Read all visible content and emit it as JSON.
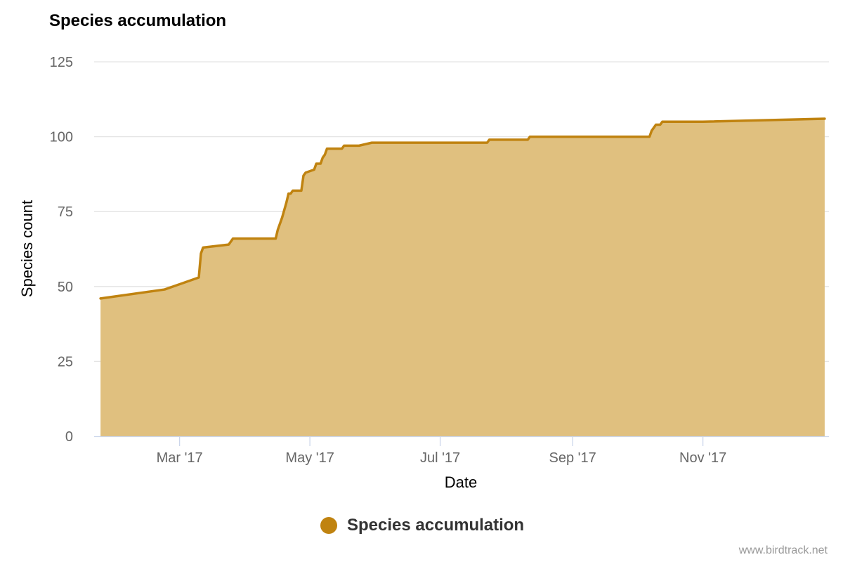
{
  "chart_data": {
    "type": "area",
    "title": "Species accumulation",
    "xlabel": "Date",
    "ylabel": "Species count",
    "x_type": "date",
    "xlim": [
      "2017-01-20",
      "2017-12-30"
    ],
    "ylim": [
      0,
      125
    ],
    "y_ticks": [
      0,
      25,
      50,
      75,
      100,
      125
    ],
    "x_ticks": [
      {
        "date": "2017-03-01",
        "label": "Mar '17"
      },
      {
        "date": "2017-05-01",
        "label": "May '17"
      },
      {
        "date": "2017-07-01",
        "label": "Jul '17"
      },
      {
        "date": "2017-09-01",
        "label": "Sep '17"
      },
      {
        "date": "2017-11-01",
        "label": "Nov '17"
      }
    ],
    "grid": true,
    "legend_position": "bottom-center",
    "series": [
      {
        "name": "Species accumulation",
        "color": "#c08310",
        "fill_color": "#e0c07f",
        "x": [
          "2017-01-23",
          "2017-02-22",
          "2017-03-10",
          "2017-03-11",
          "2017-03-12",
          "2017-03-24",
          "2017-03-26",
          "2017-04-15",
          "2017-04-16",
          "2017-04-18",
          "2017-04-20",
          "2017-04-21",
          "2017-04-22",
          "2017-04-23",
          "2017-04-27",
          "2017-04-28",
          "2017-04-29",
          "2017-05-03",
          "2017-05-04",
          "2017-05-06",
          "2017-05-07",
          "2017-05-08",
          "2017-05-09",
          "2017-05-16",
          "2017-05-17",
          "2017-05-24",
          "2017-05-30",
          "2017-07-23",
          "2017-07-24",
          "2017-08-11",
          "2017-08-12",
          "2017-10-07",
          "2017-10-08",
          "2017-10-09",
          "2017-10-10",
          "2017-10-12",
          "2017-10-13",
          "2017-11-01",
          "2017-12-28"
        ],
        "values": [
          46,
          49,
          53,
          61,
          63,
          64,
          66,
          66,
          69,
          73,
          78,
          81,
          81,
          82,
          82,
          87,
          88,
          89,
          91,
          91,
          93,
          94,
          96,
          96,
          97,
          97,
          98,
          98,
          99,
          99,
          100,
          100,
          102,
          103,
          104,
          104,
          105,
          105,
          106
        ]
      }
    ]
  },
  "credits": "www.birdtrack.net"
}
